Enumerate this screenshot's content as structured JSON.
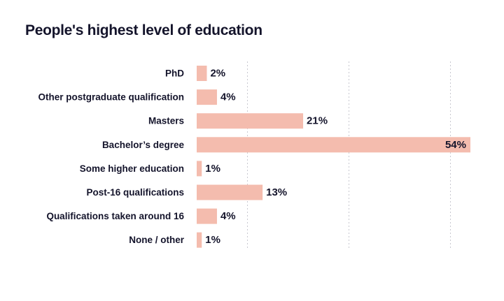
{
  "chart_data": {
    "type": "bar",
    "orientation": "horizontal",
    "title": "People's highest level of education",
    "xlabel": "",
    "ylabel": "",
    "categories": [
      "PhD",
      "Other postgraduate qualification",
      "Masters",
      "Bachelor’s degree",
      "Some higher education",
      "Post-16 qualifications",
      "Qualifications taken around 16",
      "None / other"
    ],
    "values": [
      2,
      4,
      21,
      54,
      1,
      13,
      4,
      1
    ],
    "value_labels": [
      "2%",
      "4%",
      "21%",
      "54%",
      "1%",
      "13%",
      "4%",
      "1%"
    ],
    "unit": "%",
    "xlim": [
      0,
      54
    ],
    "gridlines": [
      10,
      30,
      50
    ],
    "grid": true,
    "legend": "none",
    "bar_color": "#f4bcae",
    "text_color": "#14142b",
    "grid_color": "#c8c8d0"
  }
}
